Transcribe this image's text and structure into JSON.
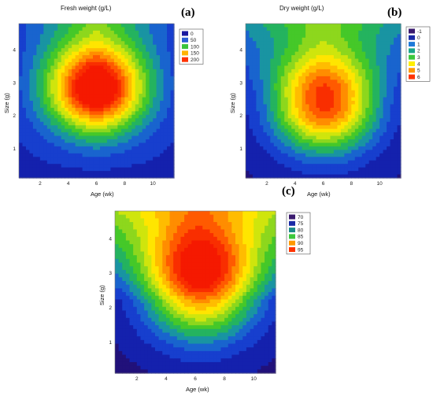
{
  "chart_data": [
    {
      "panel": "(a)",
      "type": "heatmap",
      "title": "Fresh weight (g/L)",
      "xlabel": "Age (wk)",
      "ylabel": "Size (g)",
      "xlim": [
        0.5,
        11.5
      ],
      "ylim": [
        0.1,
        4.8
      ],
      "xticks": [
        2,
        4,
        6,
        8,
        10
      ],
      "yticks": [
        1,
        2,
        3,
        4
      ],
      "legend": {
        "position": "right",
        "levels": [
          {
            "label": "0",
            "color": "#1a1aa0"
          },
          {
            "label": "50",
            "color": "#2a5fd6"
          },
          {
            "label": "100",
            "color": "#39c43c"
          },
          {
            "label": "150",
            "color": "#ffb300"
          },
          {
            "label": "200",
            "color": "#ff3300"
          }
        ]
      },
      "surface": {
        "vmin": 0,
        "vmax": 215,
        "peak": {
          "x": 6.0,
          "y": 2.7,
          "value": 215
        }
      }
    },
    {
      "panel": "(b)",
      "type": "heatmap",
      "title": "Dry weight (g/L)",
      "xlabel": "Age (wk)",
      "ylabel": "Size (g)",
      "xlim": [
        0.5,
        11.5
      ],
      "ylim": [
        0.1,
        4.8
      ],
      "xticks": [
        2,
        4,
        6,
        8,
        10
      ],
      "yticks": [
        1,
        2,
        3,
        4
      ],
      "legend": {
        "position": "right",
        "levels": [
          {
            "label": "-1",
            "color": "#3a1a6e"
          },
          {
            "label": "0",
            "color": "#1a2aa6"
          },
          {
            "label": "1",
            "color": "#1e7ad8"
          },
          {
            "label": "2",
            "color": "#1aa68a"
          },
          {
            "label": "3",
            "color": "#3cc83c"
          },
          {
            "label": "4",
            "color": "#ffee00"
          },
          {
            "label": "5",
            "color": "#ff9900"
          },
          {
            "label": "6",
            "color": "#ff3300"
          }
        ]
      },
      "surface": {
        "vmin": -1,
        "vmax": 6.8,
        "peak": {
          "x": 6.1,
          "y": 2.4,
          "value": 6.8
        }
      }
    },
    {
      "panel": "(c)",
      "type": "heatmap",
      "title": "",
      "xlabel": "Age (wk)",
      "ylabel": "Size (g)",
      "xlim": [
        0.5,
        11.5
      ],
      "ylim": [
        0.1,
        4.8
      ],
      "xticks": [
        2,
        4,
        6,
        8,
        10
      ],
      "yticks": [
        1,
        2,
        3,
        4
      ],
      "legend": {
        "position": "right",
        "levels": [
          {
            "label": "70",
            "color": "#3a1a6e"
          },
          {
            "label": "75",
            "color": "#1a2aa6"
          },
          {
            "label": "80",
            "color": "#1a8a8a"
          },
          {
            "label": "85",
            "color": "#3cc83c"
          },
          {
            "label": "90",
            "color": "#ff9900"
          },
          {
            "label": "95",
            "color": "#ff3300"
          }
        ]
      },
      "surface": {
        "vmin": 68,
        "vmax": 96.5,
        "peak": {
          "x": 6.4,
          "y": 2.8,
          "value": 96.5
        }
      }
    }
  ]
}
